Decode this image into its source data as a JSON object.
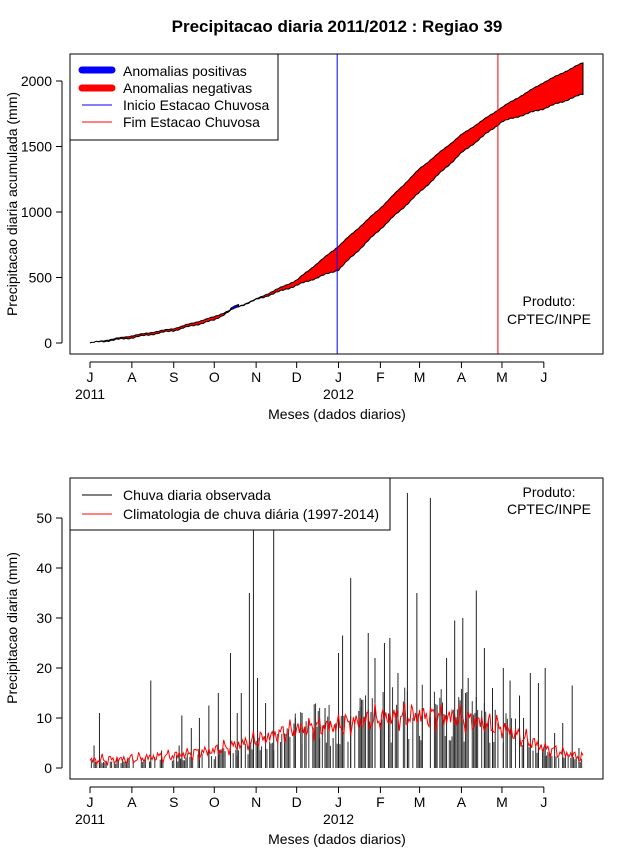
{
  "chart_data": [
    {
      "type": "area",
      "title": "Precipitacao diaria 2011/2012 : Regiao 39",
      "xlabel": "Meses (dados diarios)",
      "ylabel": "Precipitacao diaria acumulada (mm)",
      "x_ticks": [
        "J",
        "A",
        "S",
        "O",
        "N",
        "D",
        "J",
        "F",
        "M",
        "A",
        "M",
        "J"
      ],
      "x_years": [
        "2011",
        "2012"
      ],
      "y_ticks": [
        0,
        500,
        1000,
        1500,
        2000
      ],
      "ylim": [
        -80,
        2290
      ],
      "legend": {
        "position": "top-left",
        "entries": [
          "Anomalias positivas",
          "Anomalias negativas",
          "Inicio Estacao Chuvosa",
          "Fim Estacao Chuvosa"
        ]
      },
      "annotation": [
        "Produto:",
        "CPTEC/INPE"
      ],
      "colors": {
        "positive": "#0000ff",
        "negative": "#ff0000",
        "inicio": "#0000ff",
        "fim": "#ff0000"
      },
      "inicio_estacao_days": 183,
      "fim_estacao_days": 302,
      "series": [
        {
          "name": "Climatologia acumulada",
          "days": [
            0,
            31,
            62,
            92,
            123,
            153,
            184,
            215,
            244,
            275,
            305,
            336,
            365
          ],
          "values": [
            0,
            55,
            110,
            200,
            335,
            480,
            740,
            1030,
            1330,
            1590,
            1800,
            1990,
            2140
          ]
        },
        {
          "name": "Observada acumulada",
          "days": [
            0,
            31,
            62,
            92,
            107,
            123,
            153,
            184,
            215,
            244,
            275,
            305,
            336,
            365
          ],
          "values": [
            0,
            40,
            95,
            175,
            265,
            330,
            440,
            560,
            870,
            1150,
            1450,
            1690,
            1790,
            1900
          ]
        }
      ]
    },
    {
      "type": "line",
      "xlabel": "Meses (dados diarios)",
      "ylabel": "Precipitacao diaria (mm)",
      "x_ticks": [
        "J",
        "A",
        "S",
        "O",
        "N",
        "D",
        "J",
        "F",
        "M",
        "A",
        "M",
        "J"
      ],
      "x_years": [
        "2011",
        "2012"
      ],
      "y_ticks": [
        0,
        10,
        20,
        30,
        40,
        50
      ],
      "ylim": [
        -2,
        58
      ],
      "legend": {
        "position": "top-left",
        "entries": [
          "Chuva diaria observada",
          "Climatologia de chuva diária (1997-2014)"
        ]
      },
      "annotation": [
        "Produto:",
        "CPTEC/INPE"
      ],
      "colors": {
        "observed": "#000000",
        "climatology": "#ff0000"
      },
      "series": [
        {
          "name": "Chuva diaria observada (picos)",
          "days": [
            3,
            7,
            45,
            53,
            66,
            68,
            75,
            81,
            88,
            95,
            104,
            109,
            112,
            118,
            121,
            124,
            130,
            136,
            152,
            157,
            165,
            170,
            174,
            180,
            184,
            187,
            193,
            200,
            206,
            211,
            215,
            218,
            222,
            228,
            235,
            242,
            246,
            252,
            256,
            264,
            270,
            276,
            280,
            286,
            292,
            298,
            306,
            311,
            318,
            321,
            326,
            332,
            337,
            344,
            350,
            357,
            362
          ],
          "values": [
            4.5,
            11,
            17.5,
            3.5,
            4.5,
            10.5,
            8,
            10,
            12.5,
            15,
            23,
            11,
            15,
            35,
            58,
            18,
            13,
            58,
            10,
            11,
            8,
            6,
            12,
            6,
            23,
            26.5,
            38,
            14,
            27,
            22,
            9,
            25,
            26,
            19,
            55,
            35,
            12,
            54,
            10,
            22,
            29.5,
            30,
            18,
            35.5,
            24,
            16,
            20,
            17.5,
            14.5,
            10,
            19,
            17,
            20,
            7,
            9,
            16.5,
            4
          ]
        },
        {
          "name": "Climatologia de chuva diária (1997-2014)",
          "days": [
            0,
            31,
            62,
            92,
            123,
            153,
            184,
            215,
            244,
            275,
            305,
            336,
            365
          ],
          "values": [
            1.5,
            1.8,
            2.5,
            3.5,
            5.5,
            7.8,
            8.5,
            10,
            10.5,
            10,
            8,
            4,
            2
          ]
        }
      ]
    }
  ]
}
